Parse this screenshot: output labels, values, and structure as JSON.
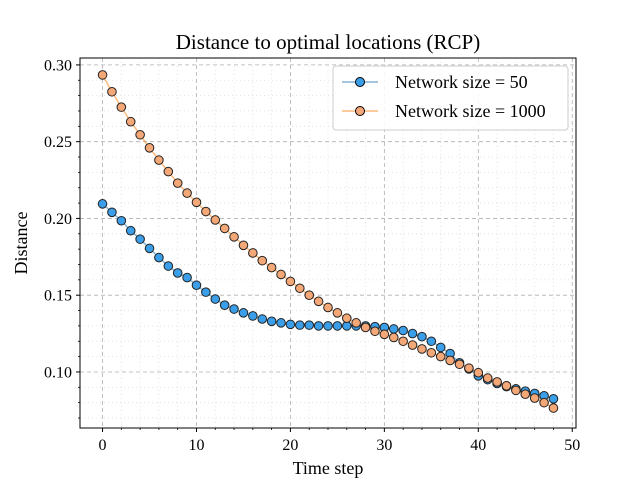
{
  "chart_data": {
    "type": "line",
    "title": "Distance to optimal locations (RCP)",
    "xlabel": "Time step",
    "ylabel": "Distance",
    "xlim": [
      -2.4,
      50.4
    ],
    "ylim": [
      0.0635,
      0.3045
    ],
    "xticks": [
      0,
      10,
      20,
      30,
      40,
      50
    ],
    "yticks": [
      0.1,
      0.15,
      0.2,
      0.25,
      0.3
    ],
    "xtick_labels": [
      "0",
      "10",
      "20",
      "30",
      "40",
      "50"
    ],
    "ytick_labels": [
      "0.10",
      "0.15",
      "0.20",
      "0.25",
      "0.30"
    ],
    "grid": true,
    "legend_position": "top-right",
    "x": [
      0,
      1,
      2,
      3,
      4,
      5,
      6,
      7,
      8,
      9,
      10,
      11,
      12,
      13,
      14,
      15,
      16,
      17,
      18,
      19,
      20,
      21,
      22,
      23,
      24,
      25,
      26,
      27,
      28,
      29,
      30,
      31,
      32,
      33,
      34,
      35,
      36,
      37,
      38,
      39,
      40,
      41,
      42,
      43,
      44,
      45,
      46,
      47,
      48
    ],
    "series": [
      {
        "name": "Network size = 50",
        "color": "#1f77b4",
        "marker_color": "#3b9ee8",
        "values": [
          0.2095,
          0.204,
          0.1985,
          0.192,
          0.1865,
          0.1805,
          0.1745,
          0.169,
          0.1645,
          0.1615,
          0.1565,
          0.152,
          0.1475,
          0.1435,
          0.141,
          0.1385,
          0.1365,
          0.1345,
          0.133,
          0.132,
          0.131,
          0.1305,
          0.1305,
          0.13,
          0.13,
          0.13,
          0.13,
          0.13,
          0.13,
          0.1295,
          0.129,
          0.128,
          0.127,
          0.125,
          0.123,
          0.12,
          0.116,
          0.112,
          0.106,
          0.102,
          0.0975,
          0.095,
          0.0925,
          0.0905,
          0.089,
          0.0875,
          0.086,
          0.0845,
          0.0825
        ]
      },
      {
        "name": "Network size = 1000",
        "color": "#ff7f0e",
        "marker_color": "#f4a777",
        "values": [
          0.2935,
          0.2825,
          0.2725,
          0.263,
          0.2545,
          0.246,
          0.238,
          0.2305,
          0.223,
          0.2165,
          0.2105,
          0.2045,
          0.199,
          0.1935,
          0.188,
          0.1825,
          0.1775,
          0.1725,
          0.168,
          0.1635,
          0.159,
          0.1545,
          0.15,
          0.146,
          0.142,
          0.1385,
          0.135,
          0.132,
          0.129,
          0.1265,
          0.1245,
          0.1225,
          0.12,
          0.1175,
          0.115,
          0.1125,
          0.11,
          0.1075,
          0.105,
          0.1025,
          0.0995,
          0.096,
          0.0935,
          0.091,
          0.088,
          0.0855,
          0.083,
          0.08,
          0.0765
        ]
      }
    ]
  }
}
